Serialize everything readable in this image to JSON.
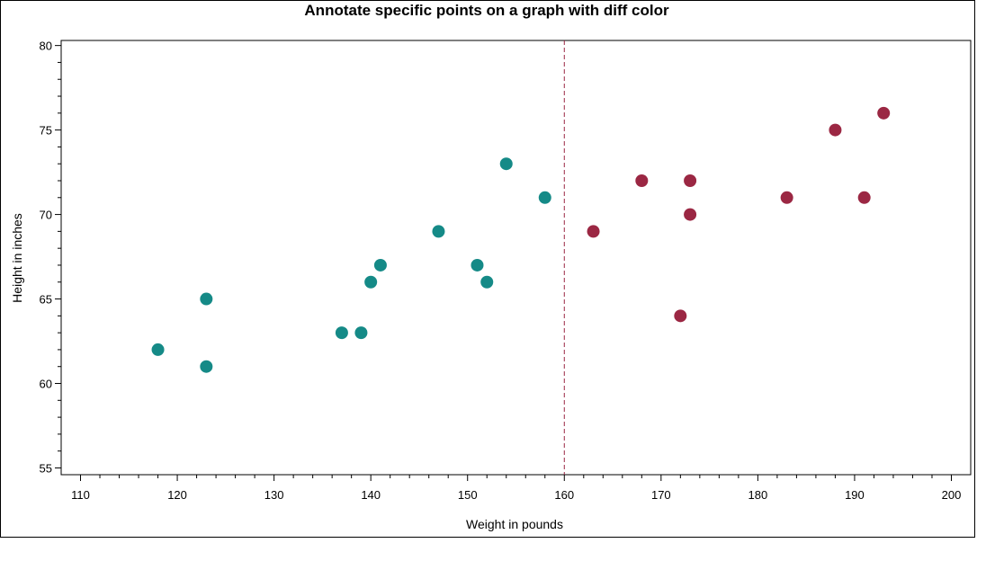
{
  "chart_data": {
    "type": "scatter",
    "title": "Annotate specific points on a graph with diff color",
    "xlabel": "Weight in pounds",
    "ylabel": "Height in inches",
    "xlim": [
      108,
      202
    ],
    "ylim": [
      54.6,
      80.3
    ],
    "x_ticks": [
      110,
      120,
      130,
      140,
      150,
      160,
      170,
      180,
      190,
      200
    ],
    "y_ticks": [
      55,
      60,
      65,
      70,
      75,
      80
    ],
    "reference_line": {
      "x": 160,
      "style": "dashed",
      "color": "#9B2743"
    },
    "grid": false,
    "series": [
      {
        "color": "#158A87",
        "points": [
          [
            118,
            62
          ],
          [
            123,
            65
          ],
          [
            123,
            61
          ],
          [
            137,
            63
          ],
          [
            139,
            63
          ],
          [
            140,
            66
          ],
          [
            141,
            67
          ],
          [
            147,
            69
          ],
          [
            151,
            67
          ],
          [
            152,
            66
          ],
          [
            154,
            73
          ],
          [
            158,
            71
          ]
        ]
      },
      {
        "color": "#9B2743",
        "points": [
          [
            163,
            69
          ],
          [
            168,
            72
          ],
          [
            172,
            64
          ],
          [
            173,
            72
          ],
          [
            173,
            70
          ],
          [
            183,
            71
          ],
          [
            188,
            75
          ],
          [
            191,
            71
          ],
          [
            193,
            76
          ]
        ]
      }
    ]
  }
}
